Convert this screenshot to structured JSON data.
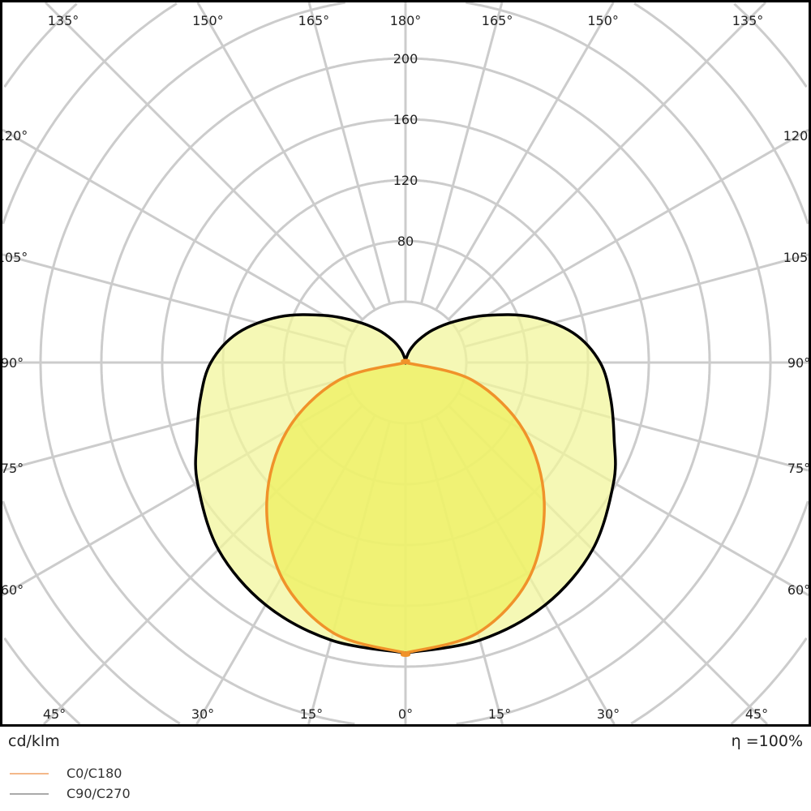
{
  "chart_data": {
    "type": "polar",
    "unit_label": "cd/klm",
    "efficiency_label": "η =100%",
    "radial_ticks": [
      80,
      120,
      160,
      200
    ],
    "radial_step": 40,
    "angle_labels_top": [
      "135°",
      "150°",
      "165°",
      "180°",
      "165°",
      "150°",
      "135°"
    ],
    "angle_labels_bottom": [
      "45°",
      "30°",
      "15°",
      "0°",
      "15°",
      "30°",
      "45°"
    ],
    "angle_labels_sides": [
      "120°",
      "105°",
      "90°",
      "75°",
      "60°"
    ],
    "grid": true,
    "legend_placement": "bottom-left",
    "series": [
      {
        "name": "C0/C180",
        "color": "#f0922a",
        "fill": "#eef060",
        "angles": [
          0,
          15,
          30,
          45,
          60,
          75,
          90
        ],
        "values": [
          191,
          184,
          163,
          129,
          90,
          46,
          0
        ]
      },
      {
        "name": "C90/C270",
        "color": "#aaaaaa",
        "stroke": "#000000",
        "fill": "#f2f59c",
        "angles": [
          0,
          15,
          30,
          45,
          60,
          70,
          80,
          90,
          100,
          110,
          120,
          130,
          140,
          150,
          160,
          170,
          180
        ],
        "values": [
          191,
          189,
          184,
          174,
          158,
          146,
          137,
          128,
          112,
          88,
          62,
          42,
          28,
          17,
          9,
          3,
          0
        ]
      }
    ]
  }
}
